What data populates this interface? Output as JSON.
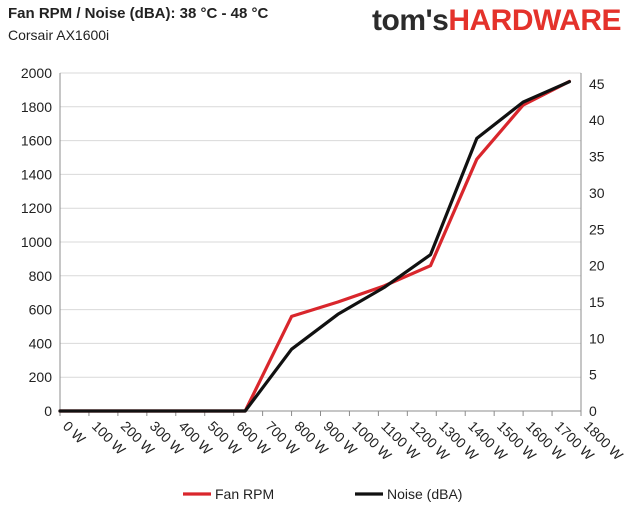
{
  "header": {
    "title": "Fan RPM / Noise (dBA): 38 °C - 48 °C",
    "subtitle": "Corsair AX1600i"
  },
  "logo": {
    "part1": "tom's",
    "part2": "HARDWARE",
    "color1": "#2b2b2b",
    "color2": "#e4322b"
  },
  "chart_data": {
    "type": "line",
    "categories": [
      "0 W",
      "100 W",
      "200 W",
      "300 W",
      "400 W",
      "500 W",
      "600 W",
      "700 W",
      "800 W",
      "900 W",
      "1000 W",
      "1100 W",
      "1200 W",
      "1300 W",
      "1400 W",
      "1500 W",
      "1600 W",
      "1700 W",
      "1800 W"
    ],
    "x": [
      0,
      200,
      440,
      640,
      800,
      960,
      1120,
      1280,
      1440,
      1600,
      1760
    ],
    "series": [
      {
        "name": "Fan RPM",
        "axis": "left",
        "color": "#d9262c",
        "values": [
          0,
          0,
          0,
          0,
          560,
          645,
          740,
          860,
          1490,
          1810,
          1950
        ]
      },
      {
        "name": "Noise (dBA)",
        "axis": "right",
        "color": "#111111",
        "values": [
          0,
          0,
          0,
          0,
          8.5,
          13.3,
          17.0,
          21.5,
          37.5,
          42.5,
          45.3
        ]
      }
    ],
    "y_left": {
      "min": 0,
      "max": 2000,
      "ticks": [
        0,
        200,
        400,
        600,
        800,
        1000,
        1200,
        1400,
        1600,
        1800,
        2000
      ]
    },
    "y_right": {
      "min": 0,
      "max": 46.5,
      "ticks": [
        0,
        5,
        10,
        15,
        20,
        25,
        30,
        35,
        40,
        45
      ]
    },
    "grid": "horizontal",
    "legend": "bottom"
  }
}
